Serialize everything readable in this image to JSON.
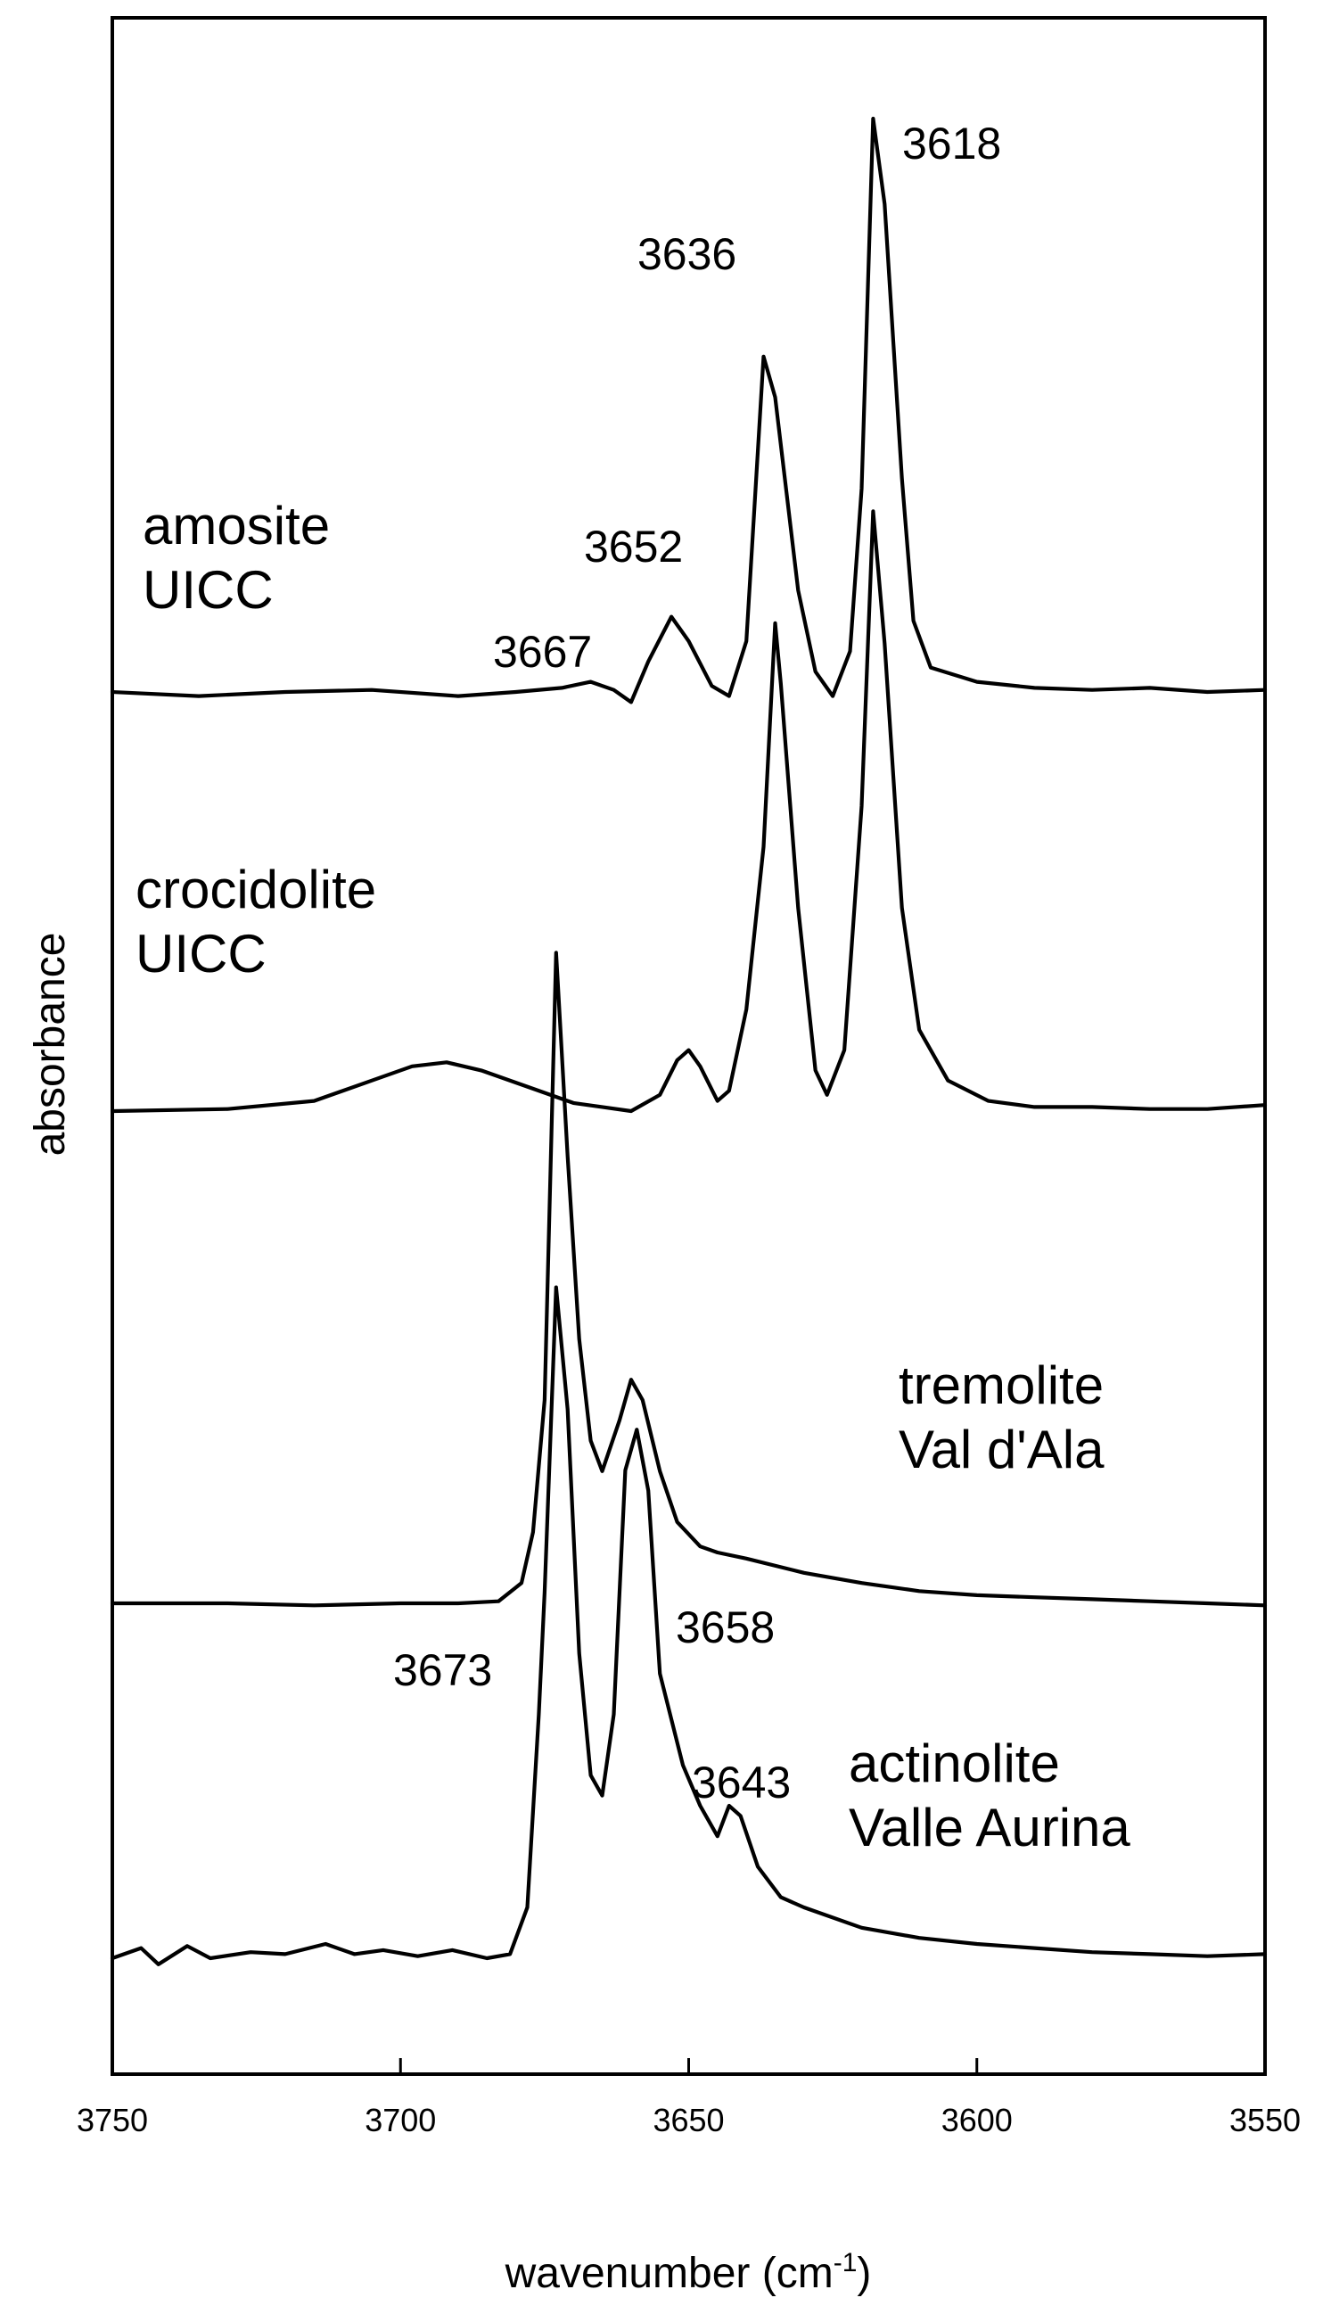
{
  "chart_data": {
    "type": "line",
    "title": "",
    "xlabel_base": "wavenumber (cm",
    "xlabel_sup": "-1",
    "xlabel_close": ")",
    "ylabel": "absorbance",
    "xlim": [
      3750,
      3550
    ],
    "x_reversed": true,
    "y_ticks_shown": false,
    "grid": false,
    "x_ticks": [
      3750,
      3700,
      3650,
      3600,
      3550
    ],
    "x_tick_labels": [
      "3750",
      "3700",
      "3650",
      "3600",
      "3550"
    ],
    "series": [
      {
        "name": "amosite UICC",
        "label_lines": [
          "amosite",
          "UICC"
        ],
        "baseline": 0,
        "points": [
          [
            3750,
            0
          ],
          [
            3735,
            -0.02
          ],
          [
            3720,
            0
          ],
          [
            3705,
            0.01
          ],
          [
            3690,
            -0.02
          ],
          [
            3680,
            0
          ],
          [
            3672,
            0.02
          ],
          [
            3667,
            0.05
          ],
          [
            3663,
            0.01
          ],
          [
            3660,
            -0.05
          ],
          [
            3657,
            0.15
          ],
          [
            3653,
            0.37
          ],
          [
            3650,
            0.25
          ],
          [
            3646,
            0.03
          ],
          [
            3643,
            -0.02
          ],
          [
            3640,
            0.25
          ],
          [
            3637,
            1.65
          ],
          [
            3635,
            1.45
          ],
          [
            3631,
            0.5
          ],
          [
            3628,
            0.1
          ],
          [
            3625,
            -0.02
          ],
          [
            3622,
            0.2
          ],
          [
            3620,
            1.0
          ],
          [
            3618,
            2.82
          ],
          [
            3616,
            2.4
          ],
          [
            3613,
            1.05
          ],
          [
            3611,
            0.35
          ],
          [
            3608,
            0.12
          ],
          [
            3600,
            0.05
          ],
          [
            3590,
            0.02
          ],
          [
            3580,
            0.01
          ],
          [
            3570,
            0.02
          ],
          [
            3560,
            0
          ],
          [
            3550,
            0.01
          ]
        ],
        "peak_labels": [
          "3667",
          "3652",
          "3636",
          "3618"
        ]
      },
      {
        "name": "crocidolite UICC",
        "label_lines": [
          "crocidolite",
          "UICC"
        ],
        "baseline": 0,
        "points": [
          [
            3750,
            0
          ],
          [
            3730,
            0.01
          ],
          [
            3715,
            0.05
          ],
          [
            3705,
            0.15
          ],
          [
            3698,
            0.22
          ],
          [
            3692,
            0.24
          ],
          [
            3686,
            0.2
          ],
          [
            3678,
            0.12
          ],
          [
            3670,
            0.04
          ],
          [
            3665,
            0.02
          ],
          [
            3660,
            0
          ],
          [
            3655,
            0.08
          ],
          [
            3652,
            0.25
          ],
          [
            3650,
            0.3
          ],
          [
            3648,
            0.22
          ],
          [
            3645,
            0.05
          ],
          [
            3643,
            0.1
          ],
          [
            3640,
            0.5
          ],
          [
            3637,
            1.3
          ],
          [
            3635,
            2.4
          ],
          [
            3634,
            2.1
          ],
          [
            3631,
            1.0
          ],
          [
            3628,
            0.2
          ],
          [
            3626,
            0.08
          ],
          [
            3623,
            0.3
          ],
          [
            3620,
            1.5
          ],
          [
            3618,
            2.95
          ],
          [
            3616,
            2.3
          ],
          [
            3613,
            1.0
          ],
          [
            3610,
            0.4
          ],
          [
            3605,
            0.15
          ],
          [
            3598,
            0.05
          ],
          [
            3590,
            0.02
          ],
          [
            3580,
            0.02
          ],
          [
            3570,
            0.01
          ],
          [
            3560,
            0.01
          ],
          [
            3550,
            0.03
          ]
        ],
        "peak_labels": []
      },
      {
        "name": "tremolite Val d'Ala",
        "label_lines": [
          "tremolite",
          "Val d'Ala"
        ],
        "baseline": 0,
        "points": [
          [
            3750,
            0
          ],
          [
            3730,
            0
          ],
          [
            3715,
            -0.01
          ],
          [
            3700,
            0
          ],
          [
            3690,
            0
          ],
          [
            3683,
            0.01
          ],
          [
            3679,
            0.1
          ],
          [
            3677,
            0.35
          ],
          [
            3675,
            1.0
          ],
          [
            3673,
            3.2
          ],
          [
            3671,
            2.2
          ],
          [
            3669,
            1.3
          ],
          [
            3667,
            0.8
          ],
          [
            3665,
            0.65
          ],
          [
            3662,
            0.9
          ],
          [
            3660,
            1.1
          ],
          [
            3658,
            1.0
          ],
          [
            3655,
            0.65
          ],
          [
            3652,
            0.4
          ],
          [
            3648,
            0.28
          ],
          [
            3645,
            0.25
          ],
          [
            3640,
            0.22
          ],
          [
            3630,
            0.15
          ],
          [
            3620,
            0.1
          ],
          [
            3610,
            0.06
          ],
          [
            3600,
            0.04
          ],
          [
            3590,
            0.03
          ],
          [
            3580,
            0.02
          ],
          [
            3570,
            0.01
          ],
          [
            3560,
            0
          ],
          [
            3550,
            -0.01
          ]
        ],
        "peak_labels": []
      },
      {
        "name": "actinolite Valle Aurina",
        "label_lines": [
          "actinolite",
          "Valle Aurina"
        ],
        "baseline": 0,
        "points": [
          [
            3750,
            0
          ],
          [
            3745,
            0.05
          ],
          [
            3742,
            -0.03
          ],
          [
            3737,
            0.06
          ],
          [
            3733,
            0
          ],
          [
            3726,
            0.03
          ],
          [
            3720,
            0.02
          ],
          [
            3713,
            0.07
          ],
          [
            3708,
            0.02
          ],
          [
            3703,
            0.04
          ],
          [
            3697,
            0.01
          ],
          [
            3691,
            0.04
          ],
          [
            3685,
            0
          ],
          [
            3681,
            0.02
          ],
          [
            3678,
            0.25
          ],
          [
            3676,
            1.2
          ],
          [
            3675,
            1.8
          ],
          [
            3673,
            3.3
          ],
          [
            3671,
            2.7
          ],
          [
            3669,
            1.5
          ],
          [
            3667,
            0.9
          ],
          [
            3665,
            0.8
          ],
          [
            3663,
            1.2
          ],
          [
            3661,
            2.4
          ],
          [
            3659,
            2.6
          ],
          [
            3657,
            2.3
          ],
          [
            3655,
            1.4
          ],
          [
            3651,
            0.95
          ],
          [
            3648,
            0.75
          ],
          [
            3645,
            0.6
          ],
          [
            3643,
            0.75
          ],
          [
            3641,
            0.7
          ],
          [
            3638,
            0.45
          ],
          [
            3634,
            0.3
          ],
          [
            3630,
            0.25
          ],
          [
            3620,
            0.15
          ],
          [
            3610,
            0.1
          ],
          [
            3600,
            0.07
          ],
          [
            3590,
            0.05
          ],
          [
            3580,
            0.03
          ],
          [
            3570,
            0.02
          ],
          [
            3560,
            0.01
          ],
          [
            3550,
            0.02
          ]
        ],
        "peak_labels": [
          "3673",
          "3658",
          "3643"
        ]
      }
    ]
  }
}
